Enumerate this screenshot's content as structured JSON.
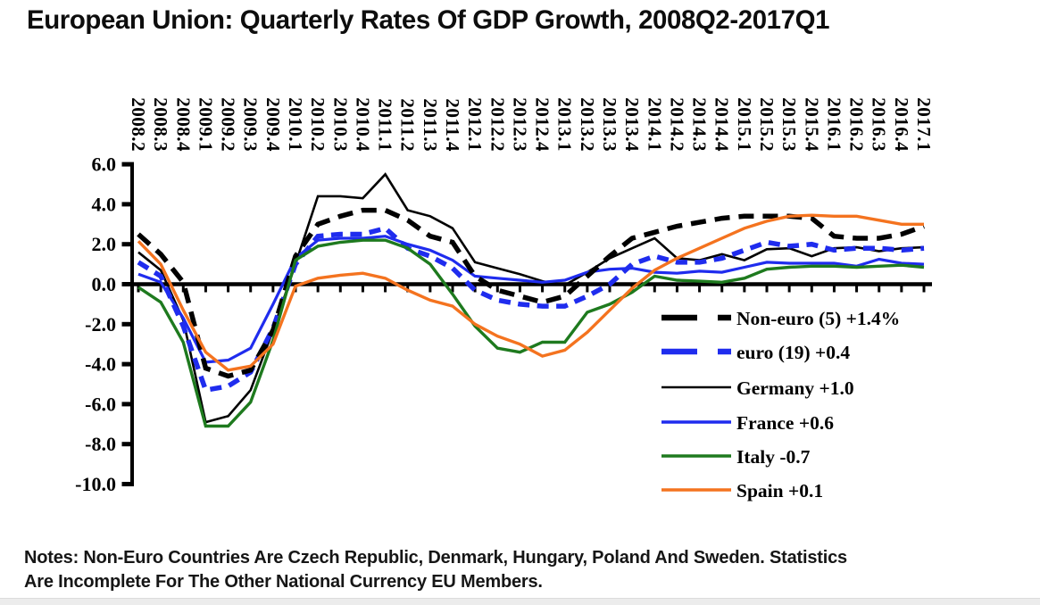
{
  "title": "European Union: Quarterly Rates Of GDP Growth, 2008Q2-2017Q1",
  "notes": {
    "line1": "Notes: Non-Euro Countries Are Czech Republic, Denmark, Hungary, Poland And Sweden. Statistics",
    "line2": "Are Incomplete For The Other National Currency EU Members."
  },
  "footer_strip_color": "#ececec",
  "chart_data": {
    "type": "line",
    "title": "European Union: Quarterly Rates Of GDP Growth, 2008Q2-2017Q1",
    "xlabel": "",
    "ylabel": "",
    "ylim": [
      -10.0,
      6.0
    ],
    "grid": false,
    "legend_position": "right-center-inside",
    "y_ticks": [
      "6.0",
      "4.0",
      "2.0",
      "0.0",
      "-2.0",
      "-4.0",
      "-6.0",
      "-8.0",
      "-10.0"
    ],
    "y_tick_values": [
      6,
      4,
      2,
      0,
      -2,
      -4,
      -6,
      -8,
      -10
    ],
    "x_label_rotation_deg": 90,
    "categories": [
      "2008.2",
      "2008.3",
      "2008.4",
      "2009.1",
      "2009.2",
      "2009.3",
      "2009.4",
      "2010.1",
      "2010.2",
      "2010.3",
      "2010.4",
      "2011.1",
      "2011.2",
      "2011.3",
      "2011.4",
      "2012.1",
      "2012.2",
      "2012.3",
      "2012.4",
      "2013.1",
      "2013.2",
      "2013.3",
      "2013.4",
      "2014.1",
      "2014.2",
      "2014.3",
      "2014.4",
      "2015.1",
      "2015.2",
      "2015.3",
      "2015.4",
      "2016.1",
      "2016.2",
      "2016.3",
      "2016.4",
      "2017.1"
    ],
    "series": [
      {
        "name": "non-euro",
        "label": "Non-euro (5) +1.4%",
        "color": "#000000",
        "line_style": "dashed",
        "width": 5.5,
        "z": 4,
        "values": [
          2.5,
          1.5,
          0.1,
          -4.2,
          -4.6,
          -4.3,
          -2.3,
          1.4,
          3.0,
          3.4,
          3.7,
          3.7,
          3.2,
          2.4,
          2.1,
          0.4,
          -0.3,
          -0.6,
          -0.9,
          -0.6,
          0.4,
          1.4,
          2.3,
          2.6,
          2.9,
          3.1,
          3.3,
          3.4,
          3.4,
          3.4,
          3.3,
          2.4,
          2.3,
          2.3,
          2.5,
          2.9
        ]
      },
      {
        "name": "euro",
        "label": "euro (19) +0.4",
        "color": "#1f2cee",
        "line_style": "dashed",
        "width": 5.5,
        "z": 3,
        "values": [
          1.1,
          0.4,
          -2.1,
          -5.3,
          -5.1,
          -4.4,
          -2.2,
          1.0,
          2.4,
          2.5,
          2.5,
          2.8,
          1.8,
          1.4,
          0.8,
          -0.3,
          -0.8,
          -1.0,
          -1.1,
          -1.1,
          -0.6,
          0.0,
          1.0,
          1.4,
          1.1,
          1.1,
          1.3,
          1.7,
          2.1,
          1.9,
          2.0,
          1.7,
          1.8,
          1.8,
          1.7,
          1.8
        ]
      },
      {
        "name": "germany",
        "label": "Germany +1.0",
        "color": "#000000",
        "line_style": "solid",
        "width": 2.6,
        "z": 1,
        "values": [
          1.6,
          0.7,
          -1.8,
          -6.9,
          -6.6,
          -5.3,
          -2.3,
          1.0,
          4.4,
          4.4,
          4.3,
          5.5,
          3.7,
          3.4,
          2.8,
          1.1,
          0.8,
          0.5,
          0.15,
          -0.05,
          0.6,
          1.3,
          1.8,
          2.3,
          1.3,
          1.2,
          1.5,
          1.2,
          1.75,
          1.8,
          1.4,
          1.8,
          1.85,
          1.65,
          1.8,
          1.85
        ]
      },
      {
        "name": "france",
        "label": "France +0.6",
        "color": "#1f2cee",
        "line_style": "solid",
        "width": 3.2,
        "z": 2,
        "values": [
          0.5,
          0.1,
          -1.7,
          -3.9,
          -3.8,
          -3.2,
          -1.0,
          1.3,
          2.2,
          2.3,
          2.3,
          2.4,
          2.0,
          1.7,
          1.2,
          0.4,
          0.3,
          0.2,
          0.1,
          0.2,
          0.6,
          0.75,
          0.8,
          0.6,
          0.55,
          0.65,
          0.6,
          0.85,
          1.1,
          1.05,
          1.05,
          1.05,
          0.9,
          1.25,
          1.05,
          1.0
        ]
      },
      {
        "name": "italy",
        "label": "Italy -0.7",
        "color": "#1e7a1e",
        "line_style": "solid",
        "width": 3.4,
        "z": 5,
        "values": [
          -0.15,
          -0.9,
          -2.9,
          -7.1,
          -7.1,
          -5.9,
          -2.8,
          1.2,
          1.9,
          2.1,
          2.2,
          2.2,
          1.8,
          1.0,
          -0.5,
          -2.1,
          -3.2,
          -3.4,
          -2.9,
          -2.9,
          -1.4,
          -1.0,
          -0.4,
          0.4,
          0.2,
          0.15,
          0.1,
          0.3,
          0.75,
          0.85,
          0.9,
          0.9,
          0.85,
          0.9,
          0.95,
          0.85
        ]
      },
      {
        "name": "spain",
        "label": "Spain +0.1",
        "color": "#f4731f",
        "line_style": "solid",
        "width": 3.4,
        "z": 6,
        "values": [
          2.15,
          1.0,
          -1.3,
          -3.4,
          -4.3,
          -4.1,
          -3.0,
          -0.1,
          0.3,
          0.45,
          0.55,
          0.3,
          -0.3,
          -0.8,
          -1.1,
          -2.0,
          -2.6,
          -3.0,
          -3.6,
          -3.3,
          -2.4,
          -1.3,
          -0.2,
          0.7,
          1.3,
          1.8,
          2.3,
          2.8,
          3.15,
          3.4,
          3.45,
          3.4,
          3.4,
          3.2,
          3.0,
          3.0
        ]
      }
    ]
  }
}
